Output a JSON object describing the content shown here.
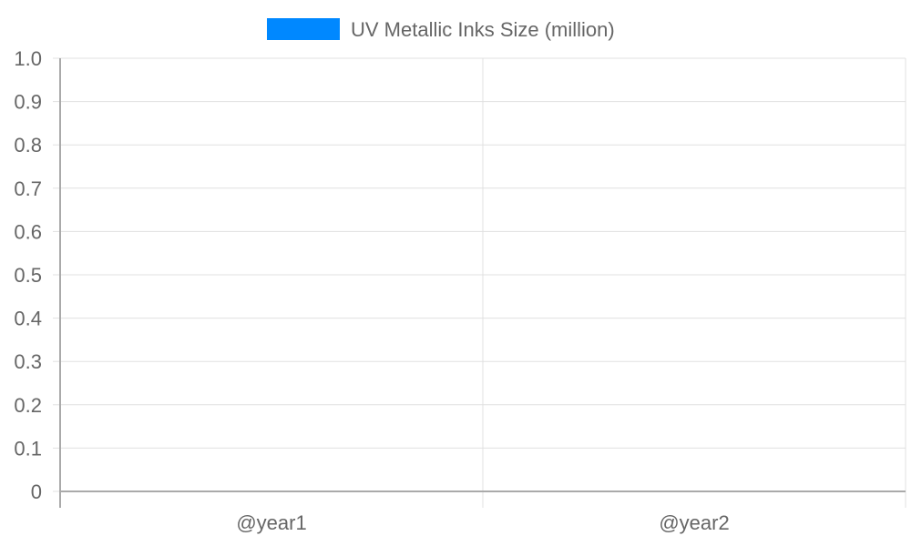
{
  "chart_data": {
    "type": "bar",
    "categories": [
      "@year1",
      "@year2"
    ],
    "series": [
      {
        "name": "UV Metallic Inks Size (million)",
        "values": [
          null,
          null
        ],
        "color": "#0088ff"
      }
    ],
    "ylim": [
      0,
      1.0
    ],
    "yticks": [
      "0",
      "0.1",
      "0.2",
      "0.3",
      "0.4",
      "0.5",
      "0.6",
      "0.7",
      "0.8",
      "0.9",
      "1.0"
    ],
    "grid": true,
    "legend_position": "top-center"
  },
  "colors": {
    "grid": "#e0e0e0",
    "axis": "#aaaaaa",
    "tick_text": "#666666"
  }
}
